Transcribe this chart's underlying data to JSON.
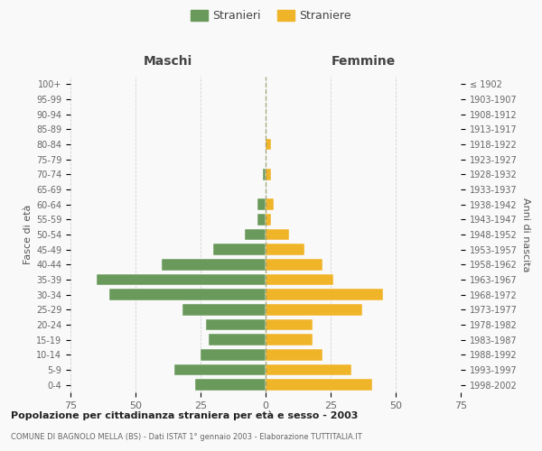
{
  "age_groups": [
    "0-4",
    "5-9",
    "10-14",
    "15-19",
    "20-24",
    "25-29",
    "30-34",
    "35-39",
    "40-44",
    "45-49",
    "50-54",
    "55-59",
    "60-64",
    "65-69",
    "70-74",
    "75-79",
    "80-84",
    "85-89",
    "90-94",
    "95-99",
    "100+"
  ],
  "birth_years": [
    "1998-2002",
    "1993-1997",
    "1988-1992",
    "1983-1987",
    "1978-1982",
    "1973-1977",
    "1968-1972",
    "1963-1967",
    "1958-1962",
    "1953-1957",
    "1948-1952",
    "1943-1947",
    "1938-1942",
    "1933-1937",
    "1928-1932",
    "1923-1927",
    "1918-1922",
    "1913-1917",
    "1908-1912",
    "1903-1907",
    "≤ 1902"
  ],
  "maschi": [
    27,
    35,
    25,
    22,
    23,
    32,
    60,
    65,
    40,
    20,
    8,
    3,
    3,
    0,
    1,
    0,
    0,
    0,
    0,
    0,
    0
  ],
  "femmine": [
    41,
    33,
    22,
    18,
    18,
    37,
    45,
    26,
    22,
    15,
    9,
    2,
    3,
    0,
    2,
    0,
    2,
    0,
    0,
    0,
    0
  ],
  "color_maschi": "#6a9a5b",
  "color_femmine": "#f0b429",
  "title": "Popolazione per cittadinanza straniera per età e sesso - 2003",
  "subtitle": "COMUNE DI BAGNOLO MELLA (BS) - Dati ISTAT 1° gennaio 2003 - Elaborazione TUTTITALIA.IT",
  "xlabel_maschi": "Maschi",
  "xlabel_femmine": "Femmine",
  "ylabel_left": "Fasce di età",
  "ylabel_right": "Anni di nascita",
  "legend_maschi": "Stranieri",
  "legend_femmine": "Straniere",
  "xlim": 75,
  "background_color": "#f9f9f9",
  "grid_color": "#cccccc"
}
